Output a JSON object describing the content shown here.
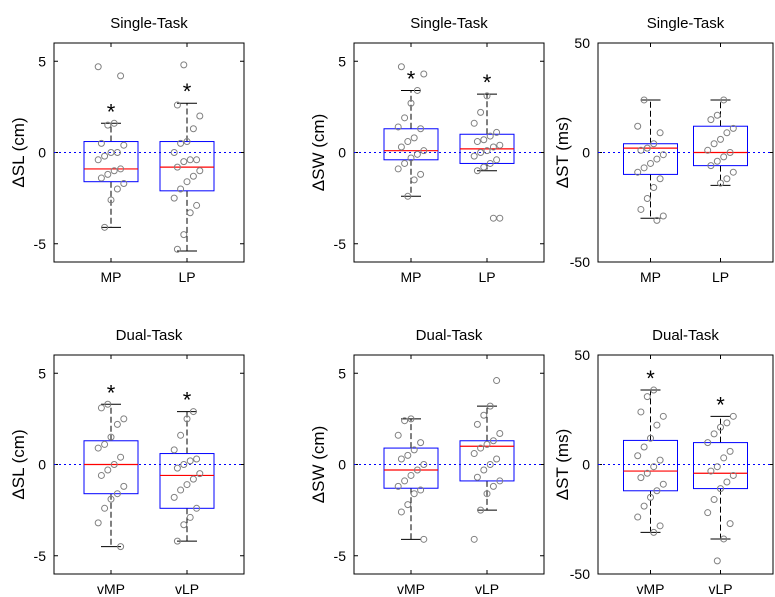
{
  "colors": {
    "box": "#0000ff",
    "median": "#ff0000",
    "zero_line": "#0000ff",
    "points": "#808080",
    "whisker": "#000000"
  },
  "chart_data": [
    {
      "type": "boxplot",
      "title": "Single-Task",
      "ylabel": "ΔSL (cm)",
      "ylim": [
        -6,
        6
      ],
      "yticks": [
        "5",
        "0",
        "-5"
      ],
      "categories": [
        "MP",
        "LP"
      ],
      "reference_line": 0,
      "boxes": [
        {
          "whisker_low": -4.1,
          "q1": -1.6,
          "median": -0.9,
          "q3": 0.6,
          "whisker_high": 1.6,
          "significant": true,
          "points": [
            4.7,
            4.2,
            1.6,
            1.5,
            0.5,
            0.4,
            0.0,
            0.0,
            -0.2,
            -0.4,
            -0.9,
            -1.0,
            -1.2,
            -1.4,
            -1.7,
            -2.0,
            -2.6,
            -4.1
          ]
        },
        {
          "whisker_low": -5.4,
          "q1": -2.1,
          "median": -0.8,
          "q3": 0.6,
          "whisker_high": 2.7,
          "significant": true,
          "points": [
            4.8,
            2.6,
            2.0,
            1.3,
            0.6,
            0.5,
            0.0,
            -0.4,
            -0.4,
            -0.5,
            -0.8,
            -1.0,
            -1.3,
            -1.6,
            -2.0,
            -2.5,
            -2.9,
            -3.3,
            -4.5,
            -5.3
          ]
        }
      ]
    },
    {
      "type": "boxplot",
      "title": "Single-Task",
      "ylabel": "ΔSW (cm)",
      "ylim": [
        -6,
        6
      ],
      "yticks": [
        "5",
        "0",
        "-5"
      ],
      "categories": [
        "MP",
        "LP"
      ],
      "reference_line": 0,
      "boxes": [
        {
          "whisker_low": -2.4,
          "q1": -0.4,
          "median": 0.1,
          "q3": 1.3,
          "whisker_high": 3.4,
          "significant": true,
          "points": [
            4.7,
            4.3,
            3.4,
            2.7,
            1.9,
            1.4,
            1.3,
            0.8,
            0.6,
            0.3,
            0.1,
            -0.1,
            -0.3,
            -0.6,
            -0.9,
            -1.2,
            -1.5,
            -2.4
          ]
        },
        {
          "whisker_low": -1.0,
          "q1": -0.6,
          "median": 0.2,
          "q3": 1.0,
          "whisker_high": 3.2,
          "significant": true,
          "points": [
            3.1,
            2.2,
            1.6,
            1.1,
            0.9,
            0.7,
            0.6,
            0.4,
            0.3,
            0.1,
            0.0,
            -0.2,
            -0.4,
            -0.6,
            -0.8,
            -1.0,
            -3.6,
            -3.6
          ]
        }
      ]
    },
    {
      "type": "boxplot",
      "title": "Single-Task",
      "ylabel": "ΔST (ms)",
      "ylim": [
        -50,
        50
      ],
      "yticks": [
        "50",
        "0",
        "-50"
      ],
      "categories": [
        "MP",
        "LP"
      ],
      "reference_line": 0,
      "boxes": [
        {
          "whisker_low": -30,
          "q1": -10,
          "median": 2,
          "q3": 4,
          "whisker_high": 24,
          "significant": false,
          "points": [
            24,
            12,
            9,
            4,
            2,
            1,
            -1,
            -3,
            -5,
            -7,
            -9,
            -12,
            -16,
            -21,
            -26,
            -29,
            -31
          ]
        },
        {
          "whisker_low": -15,
          "q1": -6,
          "median": 0,
          "q3": 12,
          "whisker_high": 24,
          "significant": false,
          "points": [
            24,
            17,
            15,
            11,
            9,
            6,
            4,
            1,
            0,
            -2,
            -4,
            -6,
            -9,
            -12,
            -14
          ]
        }
      ]
    },
    {
      "type": "boxplot",
      "title": "Dual-Task",
      "ylabel": "ΔSL (cm)",
      "ylim": [
        -6,
        6
      ],
      "yticks": [
        "5",
        "0",
        "-5"
      ],
      "categories": [
        "vMP",
        "vLP"
      ],
      "reference_line": 0,
      "boxes": [
        {
          "whisker_low": -4.5,
          "q1": -1.6,
          "median": 0.0,
          "q3": 1.3,
          "whisker_high": 3.3,
          "significant": true,
          "points": [
            3.3,
            3.1,
            2.5,
            2.2,
            1.5,
            1.1,
            0.9,
            0.4,
            0.0,
            -0.3,
            -0.6,
            -1.2,
            -1.6,
            -1.9,
            -2.4,
            -3.2,
            -4.5
          ]
        },
        {
          "whisker_low": -4.2,
          "q1": -2.4,
          "median": -0.6,
          "q3": 0.6,
          "whisker_high": 2.9,
          "significant": true,
          "points": [
            2.9,
            2.5,
            1.6,
            0.8,
            0.3,
            0.2,
            0.0,
            -0.2,
            -0.5,
            -0.8,
            -1.1,
            -1.4,
            -1.8,
            -2.4,
            -2.9,
            -3.3,
            -4.2
          ]
        }
      ]
    },
    {
      "type": "boxplot",
      "title": "Dual-Task",
      "ylabel": "ΔSW (cm)",
      "ylim": [
        -6,
        6
      ],
      "yticks": [
        "5",
        "0",
        "-5"
      ],
      "categories": [
        "vMP",
        "vLP"
      ],
      "reference_line": 0,
      "boxes": [
        {
          "whisker_low": -4.1,
          "q1": -1.3,
          "median": -0.3,
          "q3": 0.9,
          "whisker_high": 2.5,
          "significant": false,
          "points": [
            2.5,
            2.4,
            1.6,
            1.2,
            0.8,
            0.5,
            0.3,
            0.0,
            -0.3,
            -0.6,
            -0.9,
            -1.2,
            -1.4,
            -1.6,
            -2.2,
            -2.6,
            -4.1
          ]
        },
        {
          "whisker_low": -2.5,
          "q1": -0.9,
          "median": 1.0,
          "q3": 1.3,
          "whisker_high": 3.2,
          "significant": false,
          "points": [
            4.6,
            3.2,
            2.7,
            2.2,
            1.7,
            1.3,
            1.1,
            0.9,
            0.6,
            0.3,
            0.0,
            -0.3,
            -0.7,
            -0.9,
            -1.2,
            -1.6,
            -2.5,
            -4.1
          ]
        }
      ]
    },
    {
      "type": "boxplot",
      "title": "Dual-Task",
      "ylabel": "ΔST (ms)",
      "ylim": [
        -50,
        50
      ],
      "yticks": [
        "50",
        "0",
        "-50"
      ],
      "categories": [
        "vMP",
        "vLP"
      ],
      "reference_line": 0,
      "boxes": [
        {
          "whisker_low": -31,
          "q1": -12,
          "median": -3,
          "q3": 11,
          "whisker_high": 34,
          "significant": true,
          "points": [
            34,
            31,
            24,
            22,
            18,
            12,
            8,
            4,
            2,
            -1,
            -4,
            -6,
            -9,
            -12,
            -15,
            -19,
            -24,
            -28,
            -31
          ]
        },
        {
          "whisker_low": -34,
          "q1": -11,
          "median": -4,
          "q3": 10,
          "whisker_high": 22,
          "significant": true,
          "points": [
            22,
            19,
            17,
            14,
            10,
            6,
            3,
            -1,
            -3,
            -5,
            -8,
            -11,
            -16,
            -22,
            -27,
            -34,
            -44
          ]
        }
      ]
    }
  ]
}
